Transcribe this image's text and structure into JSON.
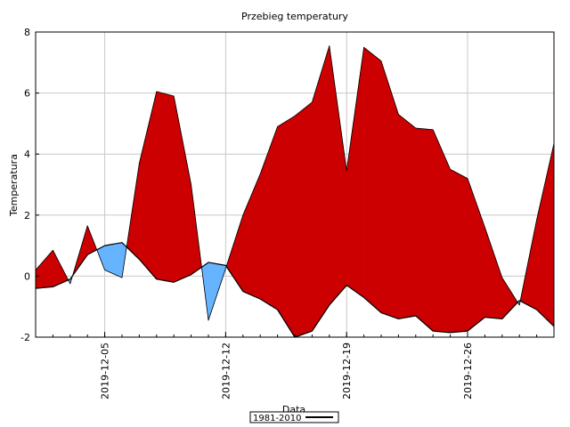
{
  "chart_data": {
    "type": "area",
    "title": "Przebieg temperatury",
    "xlabel": "Data",
    "ylabel": "Temperatura",
    "ylim": [
      -2,
      8
    ],
    "yticks": [
      -2,
      0,
      2,
      4,
      6,
      8
    ],
    "xlim": [
      "2019-12-01",
      "2019-12-31"
    ],
    "xticks": [
      "2019-12-05",
      "2019-12-12",
      "2019-12-19",
      "2019-12-26"
    ],
    "grid": true,
    "legend": {
      "position": "bottom-center",
      "entries": [
        "1981-2010"
      ]
    },
    "colors": {
      "above": "#cc0000",
      "below": "#66b3ff",
      "line": "#000000"
    },
    "x": [
      "2019-12-01",
      "2019-12-02",
      "2019-12-03",
      "2019-12-04",
      "2019-12-05",
      "2019-12-06",
      "2019-12-07",
      "2019-12-08",
      "2019-12-09",
      "2019-12-10",
      "2019-12-11",
      "2019-12-12",
      "2019-12-13",
      "2019-12-14",
      "2019-12-15",
      "2019-12-16",
      "2019-12-17",
      "2019-12-18",
      "2019-12-19",
      "2019-12-20",
      "2019-12-21",
      "2019-12-22",
      "2019-12-23",
      "2019-12-24",
      "2019-12-25",
      "2019-12-26",
      "2019-12-27",
      "2019-12-28",
      "2019-12-29",
      "2019-12-30",
      "2019-12-31"
    ],
    "series": [
      {
        "values": [
          0.2,
          0.85,
          -0.25,
          1.65,
          0.2,
          -0.05,
          3.7,
          6.05,
          5.9,
          3.0,
          -1.45,
          0.25,
          2.0,
          3.35,
          4.9,
          5.25,
          5.7,
          7.55,
          3.45,
          7.5,
          7.05,
          5.3,
          4.85,
          4.8,
          3.5,
          3.2,
          1.6,
          -0.05,
          -0.95,
          1.85,
          4.35
        ]
      },
      {
        "name": "1981-2010",
        "values": [
          -0.4,
          -0.35,
          -0.1,
          0.7,
          1.0,
          1.1,
          0.55,
          -0.1,
          -0.2,
          0.05,
          0.45,
          0.35,
          -0.5,
          -0.75,
          -1.1,
          -2.0,
          -1.8,
          -0.95,
          -0.3,
          -0.7,
          -1.2,
          -1.4,
          -1.3,
          -1.8,
          -1.85,
          -1.8,
          -1.35,
          -1.4,
          -0.8,
          -1.1,
          -1.65
        ]
      }
    ]
  }
}
